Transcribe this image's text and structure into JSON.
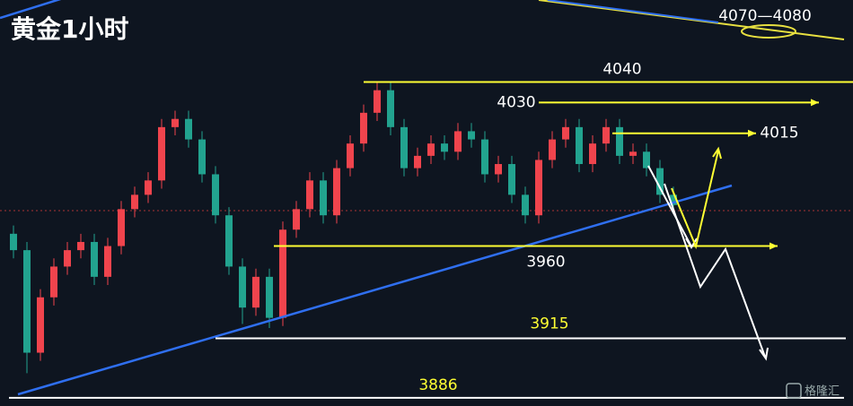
{
  "chart_data": {
    "type": "candlestick",
    "title": "黄金1小时",
    "up_color": "#f0444d",
    "down_color": "#22a38f",
    "ylim": [
      3882,
      4080
    ],
    "open": [
      3966,
      3958,
      3908,
      3935,
      3950,
      3958,
      3962,
      3945,
      3960,
      3978,
      3985,
      3992,
      4018,
      4022,
      4012,
      3995,
      3975,
      3950,
      3930,
      3945,
      3925,
      3968,
      3978,
      3992,
      3975,
      3998,
      4010,
      4025,
      4036,
      4018,
      3998,
      4004,
      4010,
      4006,
      4016,
      4012,
      3995,
      4000,
      3985,
      3975,
      4002,
      4012,
      4018,
      4000,
      4010,
      4018,
      4004,
      4006,
      3998,
      3985
    ],
    "high": [
      3970,
      3962,
      3939,
      3954,
      3962,
      3966,
      3966,
      3964,
      3982,
      3989,
      3996,
      4022,
      4026,
      4026,
      4016,
      3999,
      3979,
      3954,
      3949,
      3949,
      3972,
      3982,
      3996,
      3996,
      4002,
      4014,
      4029,
      4040,
      4040,
      4022,
      4008,
      4014,
      4014,
      4020,
      4020,
      4016,
      4004,
      4004,
      3989,
      4006,
      4016,
      4022,
      4022,
      4014,
      4022,
      4022,
      4010,
      4010,
      4002,
      3989
    ],
    "low": [
      3954,
      3898,
      3904,
      3931,
      3946,
      3954,
      3941,
      3941,
      3956,
      3974,
      3981,
      3988,
      4014,
      4008,
      3991,
      3971,
      3946,
      3922,
      3926,
      3920,
      3921,
      3964,
      3974,
      3971,
      3971,
      3994,
      4006,
      4021,
      4014,
      3994,
      3994,
      4000,
      4002,
      4002,
      4008,
      3991,
      3991,
      3981,
      3971,
      3971,
      3998,
      4008,
      3996,
      3996,
      4006,
      4000,
      4000,
      3994,
      3981,
      3976
    ],
    "close": [
      3958,
      3908,
      3935,
      3950,
      3958,
      3962,
      3945,
      3960,
      3978,
      3985,
      3992,
      4018,
      4022,
      4012,
      3995,
      3975,
      3950,
      3930,
      3945,
      3925,
      3968,
      3978,
      3992,
      3975,
      3998,
      4010,
      4025,
      4036,
      4018,
      3998,
      4004,
      4010,
      4006,
      4016,
      4012,
      3995,
      4000,
      3985,
      3975,
      4002,
      4012,
      4018,
      4000,
      4010,
      4018,
      4004,
      4006,
      3998,
      3985,
      3980
    ],
    "levels": [
      {
        "value": 4040,
        "color": "#ffff33"
      },
      {
        "value": 4030,
        "color": "#ffff33"
      },
      {
        "value": 4015,
        "color": "#ffff33"
      },
      {
        "value": 3960,
        "color": "#ffff33"
      },
      {
        "value": 3915,
        "color": "#ffffff"
      },
      {
        "value": 3886,
        "color": "#ffffff"
      }
    ],
    "annotation": "4070—4080",
    "watermark": "格隆汇"
  }
}
